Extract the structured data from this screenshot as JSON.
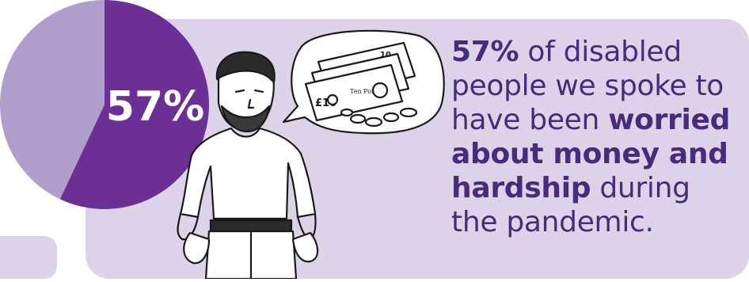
{
  "chart_data": {
    "type": "pie",
    "slices": [
      {
        "label": "57%",
        "value": 57,
        "color": "#6b2f95"
      },
      {
        "label": "",
        "value": 43,
        "color": "#b19dcb"
      }
    ]
  },
  "caption": {
    "stat": "57%",
    "text1": " of disabled people we spoke to have been ",
    "bold": "worried about money and hardship",
    "text2": " during the pandemic."
  },
  "banknote": {
    "denomination": "£10",
    "corner_number": "10",
    "words": "Ten Pounds"
  },
  "colors": {
    "panel": "#dcd3e8",
    "pie_major": "#6b2f95",
    "pie_minor": "#b19dcb",
    "text": "#4a2a7a"
  }
}
